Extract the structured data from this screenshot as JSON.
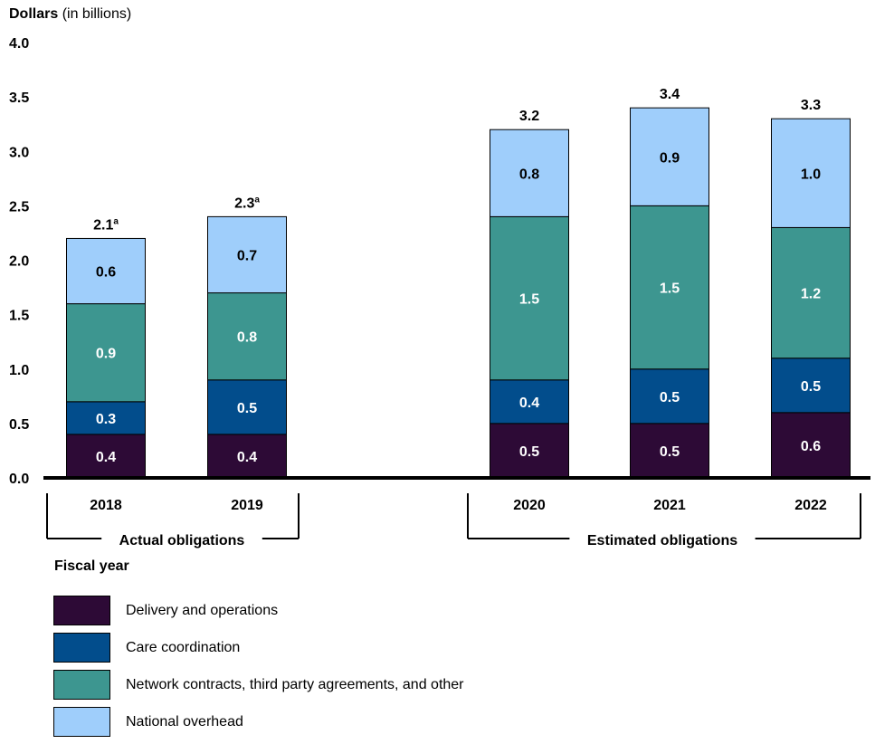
{
  "axis": {
    "title_bold": "Dollars",
    "title_rest": " (in billions)",
    "xlabel": "Fiscal year"
  },
  "chart_data": {
    "type": "bar",
    "stacked": true,
    "categories": [
      "2018",
      "2019",
      "2020",
      "2021",
      "2022"
    ],
    "series": [
      {
        "name": "Delivery and operations",
        "color": "#2d0a36",
        "values": [
          0.4,
          0.4,
          0.5,
          0.5,
          0.6
        ],
        "labels": [
          "0.4",
          "0.4",
          "0.5",
          "0.5",
          "0.6"
        ]
      },
      {
        "name": "Care coordination",
        "color": "#024d8c",
        "values": [
          0.3,
          0.5,
          0.4,
          0.5,
          0.5
        ],
        "labels": [
          "0.3",
          "0.5",
          "0.4",
          "0.5",
          "0.5"
        ]
      },
      {
        "name": "Network contracts, third party agreements, and other",
        "color": "#3d9690",
        "values": [
          0.9,
          0.8,
          1.5,
          1.5,
          1.2
        ],
        "labels": [
          "0.9",
          "0.8",
          "1.5",
          "1.5",
          "1.2"
        ]
      },
      {
        "name": "National overhead",
        "color": "#9fcefb",
        "values": [
          0.6,
          0.7,
          0.8,
          0.9,
          1.0
        ],
        "labels": [
          "0.6",
          "0.7",
          "0.8",
          "0.9",
          "1.0"
        ]
      }
    ],
    "totals": [
      "2.1",
      "2.3",
      "3.2",
      "3.4",
      "3.3"
    ],
    "total_notes": [
      "a",
      "a",
      "",
      "",
      ""
    ],
    "ylim": [
      0,
      4.0
    ],
    "yticks": [
      "0.0",
      "0.5",
      "1.0",
      "1.5",
      "2.0",
      "2.5",
      "3.0",
      "3.5",
      "4.0"
    ],
    "groups": [
      {
        "label": "Actual obligations",
        "categories": [
          "2018",
          "2019"
        ]
      },
      {
        "label": "Estimated obligations",
        "categories": [
          "2020",
          "2021",
          "2022"
        ]
      }
    ],
    "legend_position": "bottom-left",
    "grid": false
  }
}
